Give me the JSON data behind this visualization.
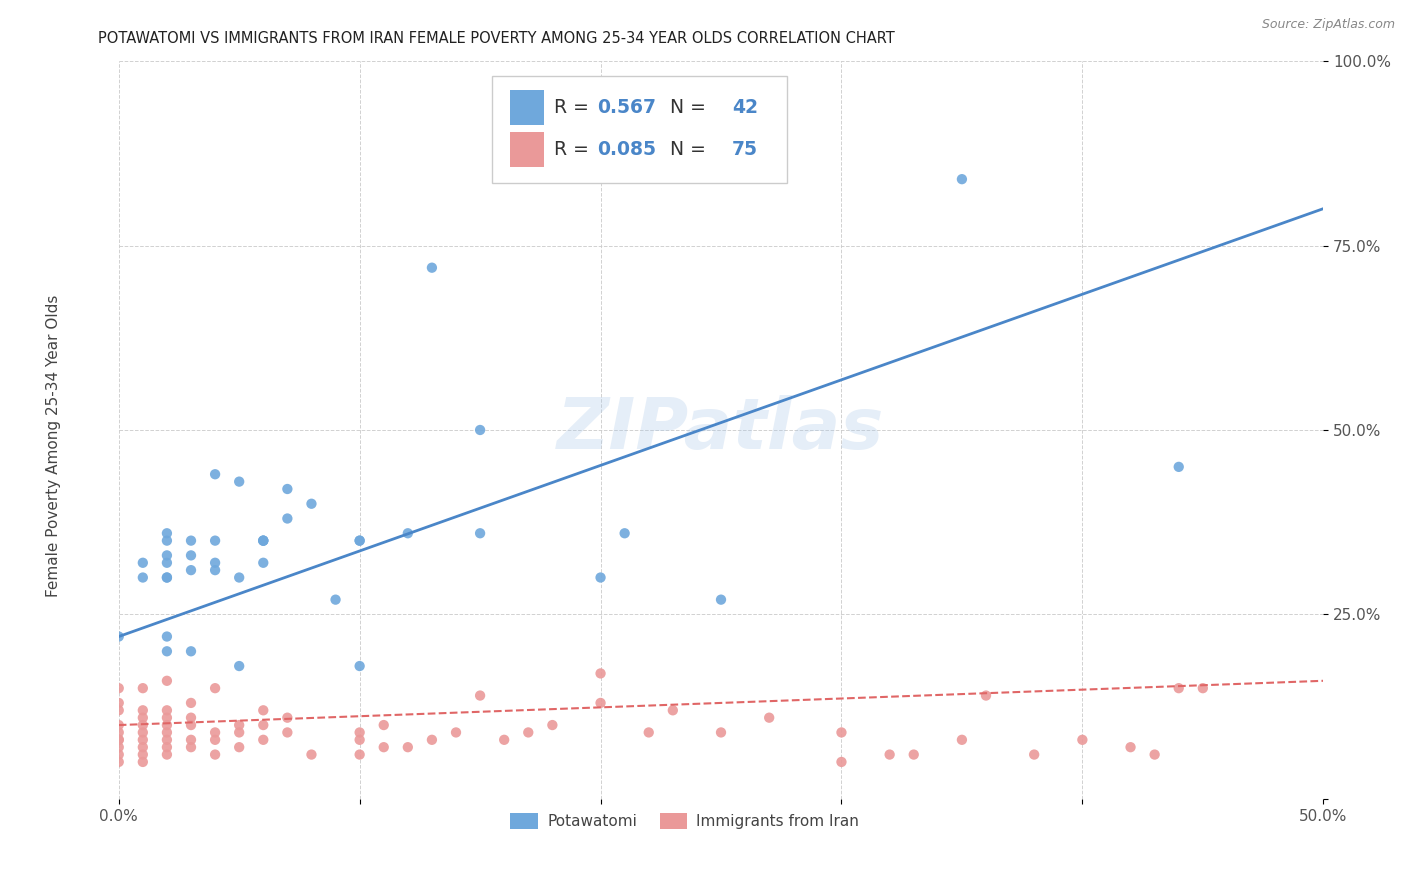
{
  "title": "POTAWATOMI VS IMMIGRANTS FROM IRAN FEMALE POVERTY AMONG 25-34 YEAR OLDS CORRELATION CHART",
  "source": "Source: ZipAtlas.com",
  "ylabel": "Female Poverty Among 25-34 Year Olds",
  "xlim": [
    0.0,
    0.5
  ],
  "ylim": [
    0.0,
    1.0
  ],
  "xticks": [
    0.0,
    0.1,
    0.2,
    0.3,
    0.4,
    0.5
  ],
  "xticklabels": [
    "0.0%",
    "",
    "",
    "",
    "",
    "50.0%"
  ],
  "yticks": [
    0.0,
    0.25,
    0.5,
    0.75,
    1.0
  ],
  "yticklabels": [
    "",
    "25.0%",
    "50.0%",
    "75.0%",
    "100.0%"
  ],
  "blue_R": 0.567,
  "blue_N": 42,
  "pink_R": 0.085,
  "pink_N": 75,
  "blue_color": "#6fa8dc",
  "pink_color": "#ea9999",
  "blue_line_color": "#4a86c8",
  "pink_line_color": "#e06666",
  "watermark": "ZIPatlas",
  "legend_label_blue": "Potawatomi",
  "legend_label_pink": "Immigrants from Iran",
  "blue_scatter_x": [
    0.0,
    0.01,
    0.01,
    0.02,
    0.02,
    0.02,
    0.02,
    0.02,
    0.02,
    0.02,
    0.02,
    0.03,
    0.03,
    0.03,
    0.03,
    0.04,
    0.04,
    0.04,
    0.04,
    0.05,
    0.05,
    0.05,
    0.06,
    0.06,
    0.06,
    0.06,
    0.07,
    0.07,
    0.08,
    0.09,
    0.1,
    0.1,
    0.1,
    0.12,
    0.13,
    0.15,
    0.15,
    0.2,
    0.21,
    0.25,
    0.35,
    0.44
  ],
  "blue_scatter_y": [
    0.22,
    0.3,
    0.32,
    0.3,
    0.32,
    0.33,
    0.35,
    0.36,
    0.2,
    0.22,
    0.3,
    0.31,
    0.33,
    0.35,
    0.2,
    0.31,
    0.35,
    0.44,
    0.32,
    0.43,
    0.3,
    0.18,
    0.35,
    0.35,
    0.35,
    0.32,
    0.38,
    0.42,
    0.4,
    0.27,
    0.18,
    0.35,
    0.35,
    0.36,
    0.72,
    0.5,
    0.36,
    0.3,
    0.36,
    0.27,
    0.84,
    0.45
  ],
  "pink_scatter_x": [
    0.0,
    0.0,
    0.0,
    0.0,
    0.0,
    0.0,
    0.0,
    0.0,
    0.0,
    0.0,
    0.01,
    0.01,
    0.01,
    0.01,
    0.01,
    0.01,
    0.01,
    0.01,
    0.01,
    0.02,
    0.02,
    0.02,
    0.02,
    0.02,
    0.02,
    0.02,
    0.02,
    0.03,
    0.03,
    0.03,
    0.03,
    0.03,
    0.04,
    0.04,
    0.04,
    0.04,
    0.05,
    0.05,
    0.05,
    0.06,
    0.06,
    0.06,
    0.07,
    0.07,
    0.08,
    0.1,
    0.1,
    0.1,
    0.11,
    0.11,
    0.12,
    0.13,
    0.14,
    0.15,
    0.16,
    0.17,
    0.18,
    0.2,
    0.2,
    0.22,
    0.23,
    0.25,
    0.27,
    0.3,
    0.3,
    0.32,
    0.33,
    0.35,
    0.36,
    0.38,
    0.4,
    0.42,
    0.43,
    0.44,
    0.45
  ],
  "pink_scatter_y": [
    0.05,
    0.06,
    0.07,
    0.08,
    0.08,
    0.09,
    0.1,
    0.12,
    0.13,
    0.15,
    0.05,
    0.06,
    0.07,
    0.08,
    0.09,
    0.1,
    0.11,
    0.12,
    0.15,
    0.06,
    0.07,
    0.08,
    0.09,
    0.1,
    0.11,
    0.12,
    0.16,
    0.07,
    0.08,
    0.1,
    0.11,
    0.13,
    0.06,
    0.08,
    0.09,
    0.15,
    0.07,
    0.09,
    0.1,
    0.08,
    0.1,
    0.12,
    0.09,
    0.11,
    0.06,
    0.06,
    0.08,
    0.09,
    0.07,
    0.1,
    0.07,
    0.08,
    0.09,
    0.14,
    0.08,
    0.09,
    0.1,
    0.13,
    0.17,
    0.09,
    0.12,
    0.09,
    0.11,
    0.05,
    0.09,
    0.06,
    0.06,
    0.08,
    0.14,
    0.06,
    0.08,
    0.07,
    0.06,
    0.15,
    0.15
  ],
  "blue_line_x0": 0.0,
  "blue_line_y0": 0.22,
  "blue_line_x1": 0.5,
  "blue_line_y1": 0.8,
  "pink_line_x0": 0.0,
  "pink_line_y0": 0.1,
  "pink_line_x1": 0.5,
  "pink_line_y1": 0.16
}
